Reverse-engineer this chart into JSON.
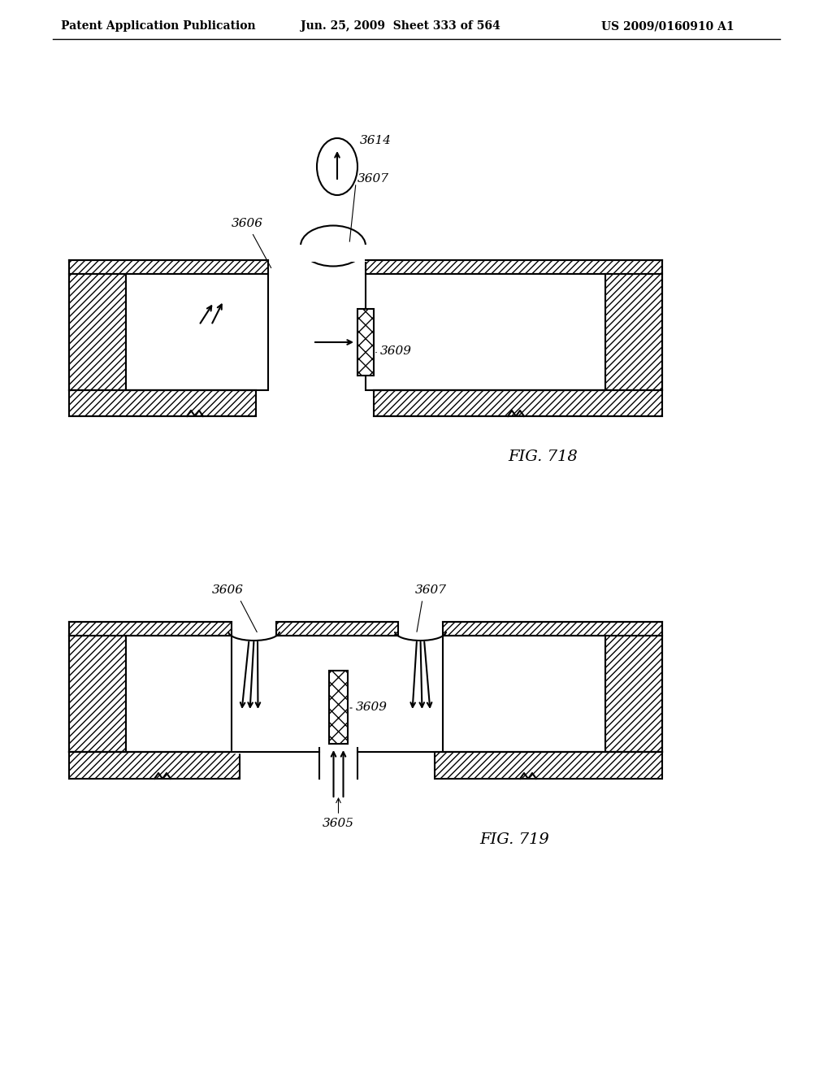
{
  "header_left": "Patent Application Publication",
  "header_middle": "Jun. 25, 2009  Sheet 333 of 564",
  "header_right": "US 2009/0160910 A1",
  "fig718_label": "FIG. 718",
  "fig719_label": "FIG. 719",
  "label_3606_718": "3606",
  "label_3607_718": "3607",
  "label_3609_718": "3609",
  "label_3614": "3614",
  "label_3606_719": "3606",
  "label_3607_719": "3607",
  "label_3609_719": "3609",
  "label_3605": "3605",
  "bg_color": "#ffffff",
  "line_color": "#000000"
}
